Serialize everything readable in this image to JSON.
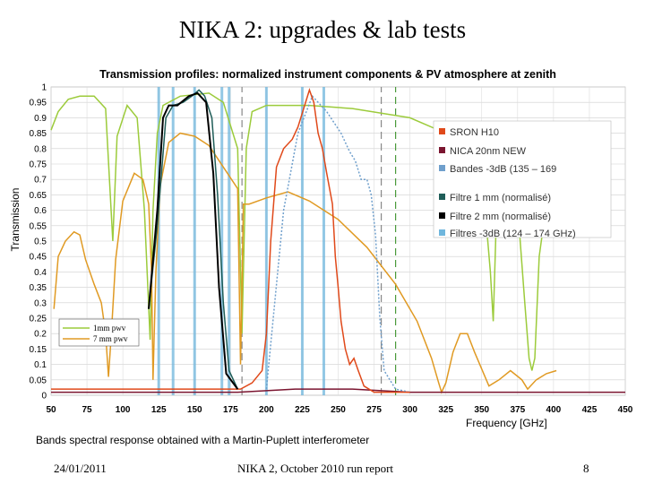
{
  "slide": {
    "title": "NIKA 2: upgrades & lab tests",
    "caption": "Bands spectral response obtained with a Martin-Puplett interferometer",
    "footer_date": "24/01/2011",
    "footer_center": "NIKA 2, October 2010 run report",
    "page_number": "8"
  },
  "chart_data": {
    "type": "line",
    "title": "Transmission profiles: normalized instrument components & PV atmosphere at zenith",
    "xlabel": "Frequency [GHz]",
    "ylabel": "Transmission",
    "xlim": [
      50,
      450
    ],
    "ylim": [
      0,
      1
    ],
    "x_ticks": [
      50,
      75,
      100,
      125,
      150,
      175,
      200,
      225,
      250,
      275,
      300,
      325,
      350,
      375,
      400,
      425,
      450
    ],
    "y_ticks": [
      0,
      0.05,
      0.1,
      0.15,
      0.2,
      0.25,
      0.3,
      0.35,
      0.4,
      0.45,
      0.5,
      0.55,
      0.6,
      0.65,
      0.7,
      0.75,
      0.8,
      0.85,
      0.9,
      0.95,
      1
    ],
    "grid": true,
    "legend_position": "right",
    "series": [
      {
        "name": "SRON H10",
        "color": "#e0491a",
        "points": [
          [
            50,
            0.02
          ],
          [
            80,
            0.02
          ],
          [
            110,
            0.02
          ],
          [
            140,
            0.02
          ],
          [
            170,
            0.02
          ],
          [
            182,
            0.02
          ],
          [
            190,
            0.04
          ],
          [
            197,
            0.08
          ],
          [
            200,
            0.2
          ],
          [
            203,
            0.5
          ],
          [
            207,
            0.74
          ],
          [
            212,
            0.8
          ],
          [
            218,
            0.83
          ],
          [
            222,
            0.87
          ],
          [
            226,
            0.93
          ],
          [
            230,
            0.99
          ],
          [
            233,
            0.95
          ],
          [
            236,
            0.85
          ],
          [
            239,
            0.8
          ],
          [
            242,
            0.72
          ],
          [
            246,
            0.62
          ],
          [
            248,
            0.45
          ],
          [
            250,
            0.35
          ],
          [
            252,
            0.24
          ],
          [
            255,
            0.15
          ],
          [
            258,
            0.1
          ],
          [
            261,
            0.12
          ],
          [
            264,
            0.08
          ],
          [
            268,
            0.03
          ],
          [
            275,
            0.01
          ],
          [
            300,
            0.01
          ]
        ]
      },
      {
        "name": "NICA 20nm NEW",
        "color": "#7b1530",
        "points": [
          [
            50,
            0.01
          ],
          [
            180,
            0.01
          ],
          [
            220,
            0.02
          ],
          [
            260,
            0.02
          ],
          [
            300,
            0.01
          ],
          [
            450,
            0.01
          ]
        ]
      },
      {
        "name": "Bandes -3dB (135 – 169",
        "color": "#6f9fcc",
        "points": [
          [
            200,
            0.02
          ],
          [
            212,
            0.6
          ],
          [
            222,
            0.85
          ],
          [
            232,
            0.97
          ],
          [
            242,
            0.92
          ],
          [
            252,
            0.85
          ],
          [
            258,
            0.79
          ],
          [
            262,
            0.76
          ],
          [
            266,
            0.7
          ],
          [
            270,
            0.7
          ],
          [
            273,
            0.65
          ],
          [
            276,
            0.52
          ],
          [
            279,
            0.25
          ],
          [
            282,
            0.08
          ],
          [
            290,
            0.02
          ],
          [
            300,
            0.01
          ]
        ]
      },
      {
        "name": "Filtre 1 mm (normalisé)",
        "color": "#1f5d58",
        "points": [
          [
            118,
            0.28
          ],
          [
            124,
            0.55
          ],
          [
            130,
            0.9
          ],
          [
            135,
            0.94
          ],
          [
            142,
            0.95
          ],
          [
            148,
            0.97
          ],
          [
            153,
            0.99
          ],
          [
            157,
            0.97
          ],
          [
            162,
            0.9
          ],
          [
            166,
            0.65
          ],
          [
            170,
            0.3
          ],
          [
            174,
            0.08
          ],
          [
            180,
            0.02
          ]
        ]
      },
      {
        "name": "Filtre 2 mm (normalisé)",
        "color": "#000000",
        "points": [
          [
            118,
            0.28
          ],
          [
            124,
            0.6
          ],
          [
            128,
            0.9
          ],
          [
            132,
            0.94
          ],
          [
            138,
            0.94
          ],
          [
            146,
            0.97
          ],
          [
            152,
            0.98
          ],
          [
            158,
            0.95
          ],
          [
            163,
            0.72
          ],
          [
            167,
            0.35
          ],
          [
            172,
            0.07
          ],
          [
            180,
            0.02
          ]
        ]
      },
      {
        "name": "Filtres -3dB (124 – 174 GHz)",
        "color": "#6fb6dd",
        "vlines": [
          125,
          135,
          150,
          169,
          174,
          200,
          225,
          240
        ]
      },
      {
        "name": "1mm pwv",
        "color": "#9ccb3b",
        "points": [
          [
            50,
            0.86
          ],
          [
            55,
            0.92
          ],
          [
            62,
            0.96
          ],
          [
            70,
            0.97
          ],
          [
            80,
            0.97
          ],
          [
            88,
            0.93
          ],
          [
            93,
            0.5
          ],
          [
            96,
            0.84
          ],
          [
            103,
            0.94
          ],
          [
            110,
            0.9
          ],
          [
            115,
            0.6
          ],
          [
            119,
            0.18
          ],
          [
            121,
            0.6
          ],
          [
            124,
            0.85
          ],
          [
            128,
            0.94
          ],
          [
            140,
            0.97
          ],
          [
            160,
            0.98
          ],
          [
            170,
            0.95
          ],
          [
            180,
            0.8
          ],
          [
            183,
            0.2
          ],
          [
            186,
            0.8
          ],
          [
            190,
            0.92
          ],
          [
            200,
            0.94
          ],
          [
            230,
            0.94
          ],
          [
            260,
            0.93
          ],
          [
            300,
            0.9
          ],
          [
            320,
            0.86
          ],
          [
            335,
            0.79
          ],
          [
            340,
            0.78
          ],
          [
            345,
            0.74
          ],
          [
            352,
            0.62
          ],
          [
            356,
            0.4
          ],
          [
            358,
            0.24
          ],
          [
            360,
            0.55
          ],
          [
            364,
            0.65
          ],
          [
            368,
            0.68
          ],
          [
            372,
            0.67
          ],
          [
            376,
            0.55
          ],
          [
            380,
            0.3
          ],
          [
            383,
            0.12
          ],
          [
            385,
            0.08
          ],
          [
            387,
            0.12
          ],
          [
            390,
            0.45
          ],
          [
            395,
            0.62
          ],
          [
            402,
            0.65
          ]
        ]
      },
      {
        "name": "7 mm pwv",
        "color": "#e09a23",
        "points": [
          [
            52,
            0.28
          ],
          [
            55,
            0.45
          ],
          [
            60,
            0.5
          ],
          [
            66,
            0.53
          ],
          [
            70,
            0.52
          ],
          [
            74,
            0.44
          ],
          [
            80,
            0.36
          ],
          [
            85,
            0.3
          ],
          [
            88,
            0.2
          ],
          [
            90,
            0.06
          ],
          [
            92,
            0.2
          ],
          [
            95,
            0.44
          ],
          [
            100,
            0.63
          ],
          [
            108,
            0.72
          ],
          [
            114,
            0.7
          ],
          [
            118,
            0.62
          ],
          [
            120,
            0.4
          ],
          [
            121,
            0.05
          ],
          [
            123,
            0.4
          ],
          [
            126,
            0.68
          ],
          [
            132,
            0.82
          ],
          [
            140,
            0.85
          ],
          [
            150,
            0.84
          ],
          [
            160,
            0.81
          ],
          [
            170,
            0.74
          ],
          [
            180,
            0.67
          ],
          [
            182,
            0.1
          ],
          [
            184,
            0.62
          ],
          [
            188,
            0.62
          ],
          [
            200,
            0.64
          ],
          [
            215,
            0.66
          ],
          [
            230,
            0.63
          ],
          [
            250,
            0.57
          ],
          [
            270,
            0.48
          ],
          [
            290,
            0.36
          ],
          [
            305,
            0.24
          ],
          [
            315,
            0.12
          ],
          [
            320,
            0.04
          ],
          [
            322,
            0.01
          ],
          [
            325,
            0.04
          ],
          [
            330,
            0.14
          ],
          [
            335,
            0.2
          ],
          [
            340,
            0.2
          ],
          [
            345,
            0.14
          ],
          [
            355,
            0.03
          ],
          [
            362,
            0.05
          ],
          [
            370,
            0.08
          ],
          [
            378,
            0.05
          ],
          [
            382,
            0.02
          ],
          [
            388,
            0.05
          ],
          [
            395,
            0.07
          ],
          [
            402,
            0.08
          ]
        ]
      }
    ],
    "reference_lines": [
      {
        "x": 183,
        "style": "dashed",
        "color": "#888888"
      },
      {
        "x": 280,
        "style": "dashed",
        "color": "#888888"
      },
      {
        "x": 290,
        "style": "dashed",
        "color": "#4a9a3a"
      }
    ],
    "pwv_legend": [
      "1mm pwv",
      "7 mm pwv"
    ]
  }
}
